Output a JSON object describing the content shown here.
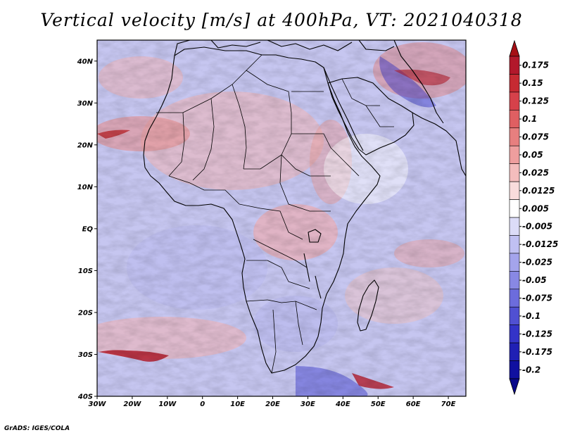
{
  "title": "Vertical velocity [m/s] at 400hPa, VT: 2021040318",
  "footer": "GrADS: IGES/COLA",
  "map": {
    "lat_labels": [
      "40N",
      "30N",
      "20N",
      "10N",
      "EQ",
      "10S",
      "20S",
      "30S",
      "40S"
    ],
    "lon_labels": [
      "30W",
      "20W",
      "10W",
      "0",
      "10E",
      "20E",
      "30E",
      "40E",
      "50E",
      "60E",
      "70E"
    ],
    "lat_range": [
      -40,
      45
    ],
    "lon_range": [
      -30,
      75
    ]
  },
  "colorbar": {
    "labels": [
      "0.175",
      "0.15",
      "0.125",
      "0.1",
      "0.075",
      "0.05",
      "0.025",
      "0.0125",
      "0.005",
      "-0.005",
      "-0.0125",
      "-0.025",
      "-0.05",
      "-0.075",
      "-0.1",
      "-0.125",
      "-0.175",
      "-0.2"
    ],
    "colors": [
      "#b2182b",
      "#c62a32",
      "#d6414a",
      "#df5f62",
      "#e77f7f",
      "#ee9e9e",
      "#f4bdbd",
      "#f9dcdc",
      "#ffffff",
      "#dcdcf8",
      "#c0c0f2",
      "#a4a4ec",
      "#8888e4",
      "#6c6cdc",
      "#5050d2",
      "#3434c8",
      "#2020b4",
      "#1010a0"
    ],
    "top_arrow_color": "#a50f15",
    "bottom_arrow_color": "#08088a"
  }
}
